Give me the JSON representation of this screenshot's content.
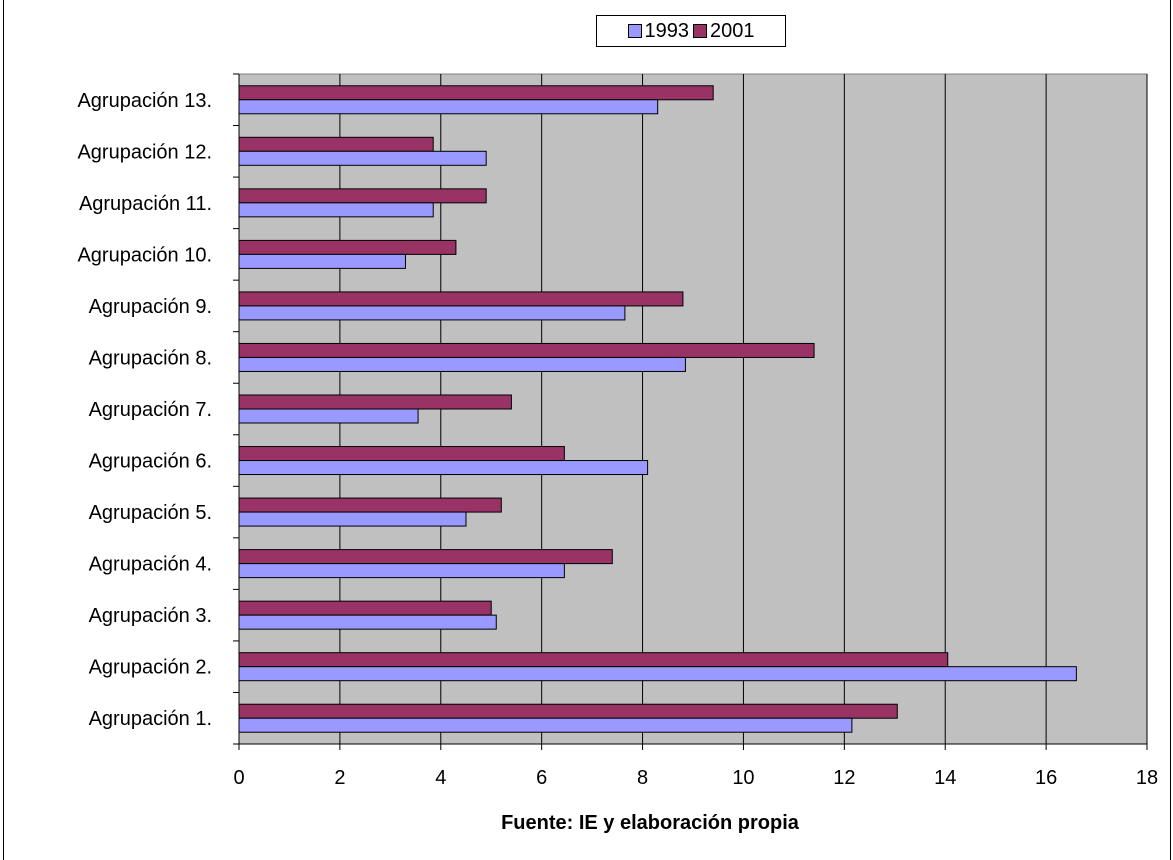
{
  "legend": {
    "labels": [
      "1993",
      "2001"
    ]
  },
  "caption": "Fuente: IE y elaboración propia",
  "colors": {
    "s1993": "#9999ff",
    "s2001": "#993366",
    "plot_bg": "#c0c0c0",
    "grid": "#000000",
    "bar_border": "#000000"
  },
  "chart_data": {
    "type": "bar",
    "orientation": "horizontal",
    "categories": [
      "Agrupación 13.",
      "Agrupación 12.",
      "Agrupación 11.",
      "Agrupación 10.",
      "Agrupación 9.",
      "Agrupación 8.",
      "Agrupación 7.",
      "Agrupación 6.",
      "Agrupación 5.",
      "Agrupación 4.",
      "Agrupación 3.",
      "Agrupación 2.",
      "Agrupación 1."
    ],
    "series": [
      {
        "name": "2001",
        "values": [
          9.4,
          3.85,
          4.9,
          4.3,
          8.8,
          11.4,
          5.4,
          6.45,
          5.2,
          7.4,
          5.0,
          14.05,
          13.05
        ]
      },
      {
        "name": "1993",
        "values": [
          8.3,
          4.9,
          3.85,
          3.3,
          7.65,
          8.85,
          3.55,
          8.1,
          4.5,
          6.45,
          5.1,
          16.6,
          12.15
        ]
      }
    ],
    "xlim": [
      0,
      18
    ],
    "xticks": [
      "0",
      "2",
      "4",
      "6",
      "8",
      "10",
      "12",
      "14",
      "16",
      "18"
    ],
    "grid": true,
    "legend_position": "top"
  }
}
